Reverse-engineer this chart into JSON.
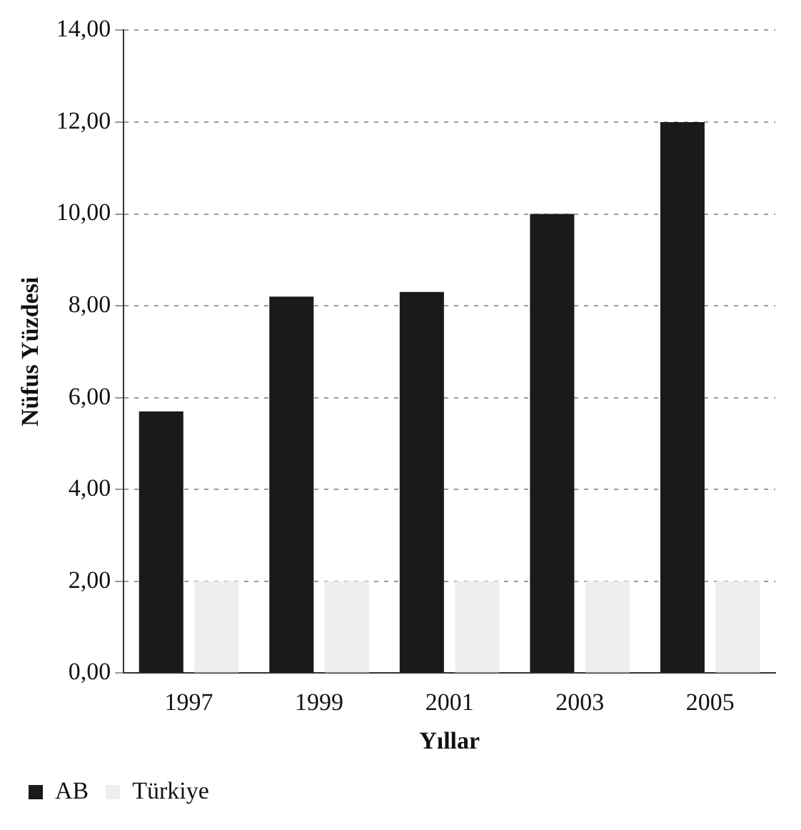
{
  "chart_data": {
    "type": "bar",
    "xlabel": "Yıllar",
    "ylabel": "Nüfus Yüzdesi",
    "categories": [
      "1997",
      "1999",
      "2001",
      "2003",
      "2005"
    ],
    "series": [
      {
        "name": "AB",
        "color": "#1a1a1a",
        "values": [
          5.7,
          8.2,
          8.3,
          10.0,
          12.0
        ]
      },
      {
        "name": "Türkiye",
        "color": "#eeeeee",
        "values": [
          2.0,
          2.0,
          2.0,
          2.0,
          2.0
        ]
      }
    ],
    "ylim": [
      0,
      14
    ],
    "yticks": [
      {
        "value": 0,
        "label": "0,00"
      },
      {
        "value": 2,
        "label": "2,00"
      },
      {
        "value": 4,
        "label": "4,00"
      },
      {
        "value": 6,
        "label": "6,00"
      },
      {
        "value": 8,
        "label": "8,00"
      },
      {
        "value": 10,
        "label": "10,00"
      },
      {
        "value": 12,
        "label": "12,00"
      },
      {
        "value": 14,
        "label": "14,00"
      }
    ],
    "grid": "y",
    "legend": "bottom left"
  }
}
